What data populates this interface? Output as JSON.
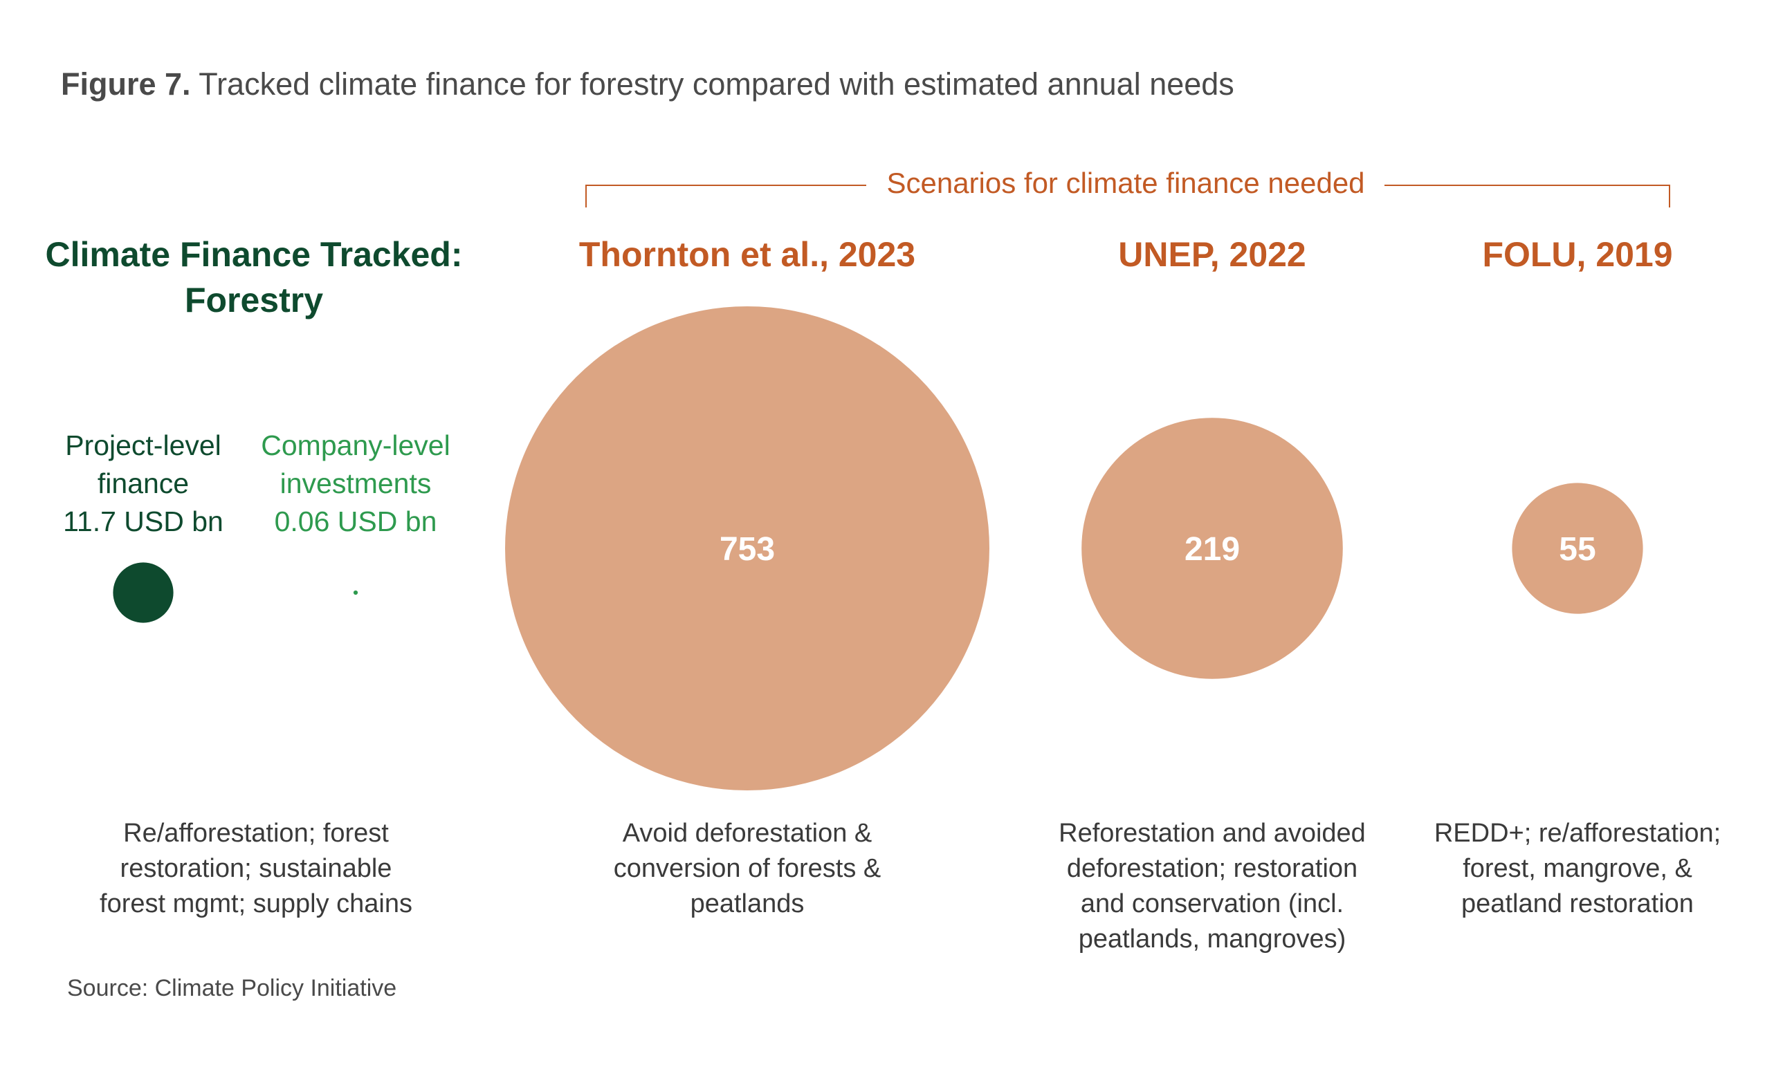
{
  "figure": {
    "label": "Figure 7.",
    "title": "Tracked climate finance for forestry compared with estimated annual needs"
  },
  "tracked": {
    "heading_line1": "Climate Finance Tracked:",
    "heading_line2": "Forestry",
    "project": {
      "line1": "Project-level",
      "line2": "finance",
      "line3": "11.7 USD bn",
      "color": "#0e4a2e"
    },
    "company": {
      "line1": "Company-level",
      "line2": "investments",
      "line3": "0.06 USD bn",
      "color": "#2e9a4e"
    },
    "desc_line1": "Re/afforestation; forest",
    "desc_line2": "restoration; sustainable",
    "desc_line3": "forest mgmt; supply chains"
  },
  "scenarios_label": "Scenarios for climate finance needed",
  "scenarios": [
    {
      "heading": "Thornton et al., 2023",
      "desc_line1": "Avoid deforestation &",
      "desc_line2": "conversion of forests &",
      "desc_line3": "peatlands",
      "desc_line4": ""
    },
    {
      "heading": "UNEP, 2022",
      "desc_line1": "Reforestation and avoided",
      "desc_line2": "deforestation; restoration",
      "desc_line3": "and conservation  (incl.",
      "desc_line4": "peatlands, mangroves)"
    },
    {
      "heading": "FOLU, 2019",
      "desc_line1": "REDD+; re/afforestation;",
      "desc_line2": "forest, mangrove, &",
      "desc_line3": "peatland restoration",
      "desc_line4": ""
    }
  ],
  "source": "Source: Climate Policy Initiative",
  "colors": {
    "bubble": "#dca583",
    "orange": "#c25a24",
    "dark_green": "#0e4a2e",
    "light_green": "#2e9a4e"
  },
  "chart_data": {
    "type": "bubble",
    "unit": "USD bn",
    "points": [
      {
        "label": "Project-level finance",
        "value": 11.7,
        "display": "",
        "group": "tracked",
        "color": "#0e4a2e"
      },
      {
        "label": "Company-level investments",
        "value": 0.06,
        "display": "",
        "group": "tracked",
        "color": "#2e9a4e"
      },
      {
        "label": "Thornton et al., 2023",
        "value": 753,
        "display": "753",
        "group": "needed",
        "color": "#dca583"
      },
      {
        "label": "UNEP, 2022",
        "value": 219,
        "display": "219",
        "group": "needed",
        "color": "#dca583"
      },
      {
        "label": "FOLU, 2019",
        "value": 55,
        "display": "55",
        "group": "needed",
        "color": "#dca583"
      }
    ]
  }
}
